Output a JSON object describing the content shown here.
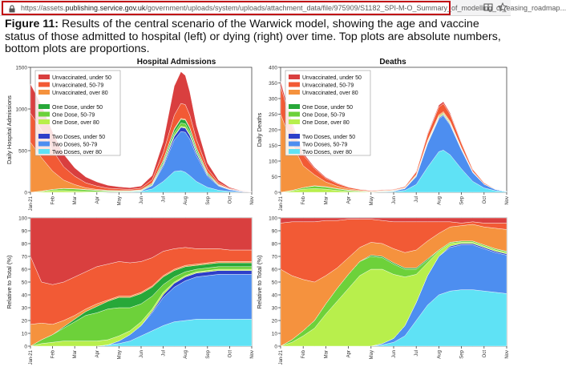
{
  "browser": {
    "url_prefix": "https://assets.",
    "url_domain": "publishing.service.gov.uk",
    "url_path": "/government/uploads/system/uploads/attachment_data/file/975909/S1182_SPI-M-O_Summary_of_modelling_of_easing_roadmap...",
    "icons": [
      "lock-icon",
      "read-mode-icon",
      "bookmark-star-icon",
      "pocket-icon",
      "more-icon"
    ]
  },
  "caption": {
    "lead": "Figure 11:",
    "text": " Results of the central scenario of the Warwick model, showing the age and vaccine status of those admitted to hospital (left) or dying (right) over time. Top plots are absolute numbers, bottom plots are proportions."
  },
  "colors": {
    "unvacc_u50": "#d93f3f",
    "unvacc_50_79": "#f25a35",
    "unvacc_80": "#f5923e",
    "one_u50": "#27a839",
    "one_50_79": "#6dd13a",
    "one_80": "#b8ef4c",
    "two_u50": "#2d3fc9",
    "two_50_79": "#4d8ef0",
    "two_80": "#5fe2f5"
  },
  "legend": [
    "Unvaccinated, under 50",
    "Unvaccinated, 50-79",
    "Unvaccinated, over 80",
    "One Dose, under 50",
    "One Dose, 50-79",
    "One Dose, over 80",
    "Two Doses, under 50",
    "Two Doses, 50-79",
    "Two Doses, over 80"
  ],
  "chart_data": [
    {
      "type": "area",
      "title": "Hospital Admissions",
      "ylabel": "Daily Hospital Admissions",
      "ylim": [
        0,
        1500
      ],
      "yticks": [
        0,
        500,
        1000,
        1500
      ],
      "xticks": [
        "Jan-21",
        "Feb",
        "Mar",
        "Apr",
        "May",
        "Jun",
        "Jul",
        "Aug",
        "Sep",
        "Oct",
        "Nov"
      ],
      "x": [
        0,
        0.5,
        1,
        1.5,
        2,
        2.5,
        3,
        3.5,
        4,
        4.5,
        5,
        5.5,
        6,
        6.5,
        6.8,
        7,
        7.2,
        7.5,
        8,
        8.5,
        9,
        9.5,
        10
      ],
      "series": [
        {
          "name": "Two Doses, over 80",
          "values": [
            0,
            0,
            0,
            0,
            0,
            0,
            0,
            2,
            3,
            5,
            10,
            40,
            130,
            250,
            260,
            240,
            200,
            130,
            60,
            25,
            10,
            4,
            1
          ]
        },
        {
          "name": "Two Doses, 50-79",
          "values": [
            0,
            0,
            0,
            0,
            0,
            0,
            0,
            0,
            1,
            2,
            5,
            40,
            180,
            380,
            470,
            480,
            440,
            310,
            130,
            50,
            20,
            8,
            2
          ]
        },
        {
          "name": "Two Doses, under 50",
          "values": [
            0,
            0,
            0,
            0,
            0,
            0,
            0,
            0,
            0,
            0,
            1,
            5,
            20,
            40,
            50,
            50,
            45,
            30,
            15,
            6,
            3,
            1,
            0
          ]
        },
        {
          "name": "One Dose, over 80",
          "values": [
            0,
            10,
            20,
            20,
            15,
            10,
            6,
            4,
            3,
            2,
            2,
            3,
            5,
            10,
            12,
            12,
            10,
            7,
            4,
            2,
            1,
            0,
            0
          ]
        },
        {
          "name": "One Dose, 50-79",
          "values": [
            0,
            5,
            15,
            25,
            25,
            20,
            15,
            10,
            8,
            6,
            6,
            10,
            20,
            35,
            40,
            40,
            35,
            25,
            12,
            5,
            2,
            1,
            0
          ]
        },
        {
          "name": "One Dose, under 50",
          "values": [
            0,
            0,
            0,
            2,
            3,
            4,
            4,
            3,
            3,
            3,
            4,
            10,
            25,
            40,
            45,
            45,
            40,
            28,
            14,
            6,
            2,
            1,
            0
          ]
        },
        {
          "name": "Unvaccinated, over 80",
          "values": [
            600,
            400,
            220,
            100,
            50,
            20,
            10,
            5,
            3,
            2,
            2,
            3,
            5,
            10,
            10,
            10,
            8,
            6,
            3,
            2,
            1,
            0,
            0
          ]
        },
        {
          "name": "Unvaccinated, 50-79",
          "values": [
            350,
            330,
            250,
            160,
            100,
            60,
            40,
            25,
            20,
            15,
            20,
            40,
            90,
            160,
            180,
            175,
            150,
            100,
            45,
            20,
            8,
            3,
            1
          ]
        },
        {
          "name": "Unvaccinated, under 50",
          "values": [
            350,
            300,
            220,
            150,
            100,
            70,
            50,
            35,
            25,
            20,
            25,
            50,
            130,
            350,
            380,
            350,
            280,
            170,
            70,
            30,
            12,
            4,
            1
          ]
        }
      ]
    },
    {
      "type": "area",
      "title": "Deaths",
      "ylabel": "Daily Deaths",
      "ylim": [
        0,
        400
      ],
      "yticks": [
        0,
        50,
        100,
        150,
        200,
        250,
        300,
        350,
        400
      ],
      "xticks": [
        "Jan-21",
        "Feb",
        "Mar",
        "Apr",
        "May",
        "Jun",
        "Jul",
        "Aug",
        "Sep",
        "Oct",
        "Nov"
      ],
      "x": [
        0,
        0.5,
        1,
        1.5,
        2,
        2.5,
        3,
        3.5,
        4,
        4.5,
        5,
        5.5,
        6,
        6.5,
        7,
        7.2,
        7.5,
        8,
        8.5,
        9,
        9.5,
        10
      ],
      "series": [
        {
          "name": "Two Doses, over 80",
          "values": [
            0,
            0,
            0,
            0,
            0,
            0,
            0,
            0,
            0,
            1,
            2,
            6,
            25,
            80,
            130,
            135,
            120,
            75,
            35,
            14,
            5,
            2
          ]
        },
        {
          "name": "Two Doses, 50-79",
          "values": [
            0,
            0,
            0,
            0,
            0,
            0,
            0,
            0,
            0,
            1,
            2,
            6,
            25,
            75,
            105,
            110,
            95,
            60,
            28,
            12,
            4,
            1
          ]
        },
        {
          "name": "Two Doses, under 50",
          "values": [
            0,
            0,
            0,
            0,
            0,
            0,
            0,
            0,
            0,
            0,
            0,
            0,
            1,
            2,
            3,
            3,
            3,
            2,
            1,
            0,
            0,
            0
          ]
        },
        {
          "name": "One Dose, over 80",
          "values": [
            0,
            4,
            10,
            12,
            10,
            6,
            3,
            2,
            1,
            1,
            1,
            1,
            1,
            2,
            2,
            2,
            2,
            1,
            1,
            0,
            0,
            0
          ]
        },
        {
          "name": "One Dose, 50-79",
          "values": [
            0,
            2,
            5,
            8,
            7,
            5,
            3,
            2,
            1,
            1,
            1,
            1,
            2,
            3,
            3,
            3,
            3,
            2,
            1,
            0,
            0,
            0
          ]
        },
        {
          "name": "One Dose, under 50",
          "values": [
            0,
            0,
            0,
            1,
            1,
            1,
            1,
            0,
            0,
            0,
            0,
            0,
            1,
            1,
            1,
            1,
            1,
            1,
            0,
            0,
            0,
            0
          ]
        },
        {
          "name": "Unvaccinated, over 80",
          "values": [
            250,
            150,
            70,
            35,
            15,
            8,
            4,
            2,
            1,
            1,
            1,
            1,
            2,
            3,
            4,
            4,
            3,
            2,
            1,
            1,
            0,
            0
          ]
        },
        {
          "name": "Unvaccinated, 50-79",
          "values": [
            90,
            60,
            35,
            20,
            12,
            8,
            5,
            3,
            2,
            2,
            2,
            3,
            8,
            18,
            25,
            26,
            22,
            14,
            6,
            3,
            1,
            0
          ]
        },
        {
          "name": "Unvaccinated, under 50",
          "values": [
            15,
            10,
            6,
            4,
            3,
            2,
            1,
            1,
            1,
            1,
            1,
            1,
            2,
            4,
            6,
            6,
            5,
            3,
            1,
            1,
            0,
            0
          ]
        }
      ]
    },
    {
      "type": "area",
      "title": "",
      "ylabel": "Relative to Total (%)",
      "ylim": [
        0,
        100
      ],
      "yticks": [
        0,
        10,
        20,
        30,
        40,
        50,
        60,
        70,
        80,
        90,
        100
      ],
      "xticks": [
        "Jan-21",
        "Feb",
        "Mar",
        "Apr",
        "May",
        "Jun",
        "Jul",
        "Aug",
        "Sep",
        "Oct",
        "Nov"
      ],
      "x": [
        0,
        0.5,
        1,
        1.5,
        2,
        2.5,
        3,
        3.5,
        4,
        4.5,
        5,
        5.5,
        6,
        6.5,
        7,
        7.5,
        8,
        8.5,
        9,
        9.5,
        10
      ],
      "series": [
        {
          "name": "Two Doses, over 80",
          "values": [
            0,
            0,
            0,
            0,
            0,
            0,
            0,
            1,
            2,
            4,
            8,
            12,
            16,
            19,
            20,
            21,
            21,
            21,
            21,
            21,
            21
          ]
        },
        {
          "name": "Two Doses, 50-79",
          "values": [
            0,
            0,
            0,
            0,
            0,
            0,
            0,
            0,
            2,
            5,
            8,
            14,
            22,
            27,
            31,
            33,
            34,
            35,
            35,
            35,
            35
          ]
        },
        {
          "name": "Two Doses, under 50",
          "values": [
            0,
            0,
            0,
            0,
            0,
            0,
            0,
            0,
            0,
            0,
            0,
            1,
            2,
            3,
            3,
            3,
            3,
            3,
            3,
            3,
            3
          ]
        },
        {
          "name": "One Dose, over 80",
          "values": [
            0,
            2,
            3,
            4,
            4,
            4,
            4,
            4,
            4,
            3,
            3,
            2,
            2,
            1,
            1,
            1,
            1,
            1,
            1,
            1,
            1
          ]
        },
        {
          "name": "One Dose, 50-79",
          "values": [
            0,
            3,
            6,
            10,
            15,
            20,
            22,
            24,
            22,
            18,
            14,
            10,
            6,
            4,
            3,
            2,
            2,
            2,
            2,
            2,
            2
          ]
        },
        {
          "name": "One Dose, under 50",
          "values": [
            0,
            0,
            0,
            1,
            2,
            3,
            5,
            6,
            8,
            8,
            8,
            7,
            6,
            5,
            4,
            3,
            3,
            3,
            3,
            3,
            3
          ]
        },
        {
          "name": "Unvaccinated, over 80",
          "values": [
            17,
            13,
            8,
            5,
            3,
            2,
            2,
            1,
            1,
            1,
            1,
            1,
            1,
            1,
            1,
            1,
            1,
            1,
            1,
            1,
            1
          ]
        },
        {
          "name": "Unvaccinated, 50-79",
          "values": [
            53,
            32,
            31,
            30,
            30,
            29,
            29,
            28,
            27,
            26,
            24,
            22,
            19,
            16,
            14,
            12,
            11,
            10,
            9,
            9,
            9
          ]
        },
        {
          "name": "Unvaccinated, under 50",
          "values": [
            30,
            50,
            52,
            50,
            46,
            42,
            38,
            36,
            34,
            35,
            34,
            31,
            26,
            24,
            23,
            24,
            24,
            24,
            25,
            25,
            25
          ]
        }
      ]
    },
    {
      "type": "area",
      "title": "",
      "ylabel": "Relative to Total (%)",
      "ylim": [
        0,
        100
      ],
      "yticks": [
        0,
        10,
        20,
        30,
        40,
        50,
        60,
        70,
        80,
        90,
        100
      ],
      "xticks": [
        "Jan-21",
        "Feb",
        "Mar",
        "Apr",
        "May",
        "Jun",
        "Jul",
        "Aug",
        "Sep",
        "Oct",
        "Nov"
      ],
      "x": [
        0,
        0.5,
        1,
        1.5,
        2,
        2.5,
        3,
        3.5,
        4,
        4.5,
        5,
        5.5,
        6,
        6.5,
        7,
        7.5,
        8,
        8.5,
        9,
        9.5,
        10
      ],
      "series": [
        {
          "name": "Two Doses, over 80",
          "values": [
            0,
            0,
            0,
            0,
            0,
            0,
            0,
            0,
            0,
            1,
            3,
            8,
            20,
            32,
            40,
            43,
            44,
            44,
            43,
            42,
            41
          ]
        },
        {
          "name": "Two Doses, 50-79",
          "values": [
            0,
            0,
            0,
            0,
            0,
            0,
            0,
            0,
            0,
            1,
            3,
            8,
            14,
            23,
            30,
            34,
            35,
            35,
            33,
            31,
            30
          ]
        },
        {
          "name": "Two Doses, under 50",
          "values": [
            0,
            0,
            0,
            0,
            0,
            0,
            0,
            0,
            0,
            0,
            0,
            0,
            0,
            0,
            0,
            1,
            1,
            1,
            1,
            1,
            1
          ]
        },
        {
          "name": "One Dose, over 80",
          "values": [
            0,
            3,
            8,
            14,
            25,
            35,
            45,
            55,
            60,
            58,
            50,
            38,
            22,
            10,
            4,
            2,
            1,
            1,
            1,
            1,
            1
          ]
        },
        {
          "name": "One Dose, 50-79",
          "values": [
            0,
            2,
            4,
            6,
            8,
            10,
            11,
            11,
            10,
            9,
            8,
            6,
            4,
            2,
            1,
            1,
            1,
            1,
            1,
            1,
            1
          ]
        },
        {
          "name": "One Dose, under 50",
          "values": [
            0,
            0,
            0,
            0,
            0,
            0,
            0,
            0,
            1,
            1,
            1,
            1,
            1,
            1,
            0,
            0,
            0,
            0,
            0,
            0,
            0
          ]
        },
        {
          "name": "Unvaccinated, over 80",
          "values": [
            60,
            50,
            40,
            30,
            22,
            16,
            13,
            11,
            10,
            10,
            11,
            12,
            14,
            14,
            13,
            12,
            12,
            13,
            14,
            16,
            17
          ]
        },
        {
          "name": "Unvaccinated, 50-79",
          "values": [
            36,
            42,
            45,
            47,
            43,
            37,
            30,
            22,
            18,
            18,
            21,
            24,
            22,
            15,
            9,
            4,
            2,
            2,
            3,
            4,
            5
          ]
        },
        {
          "name": "Unvaccinated, under 50",
          "values": [
            4,
            3,
            3,
            3,
            2,
            2,
            1,
            1,
            1,
            2,
            3,
            3,
            3,
            3,
            3,
            3,
            4,
            3,
            4,
            4,
            4
          ]
        }
      ]
    }
  ]
}
